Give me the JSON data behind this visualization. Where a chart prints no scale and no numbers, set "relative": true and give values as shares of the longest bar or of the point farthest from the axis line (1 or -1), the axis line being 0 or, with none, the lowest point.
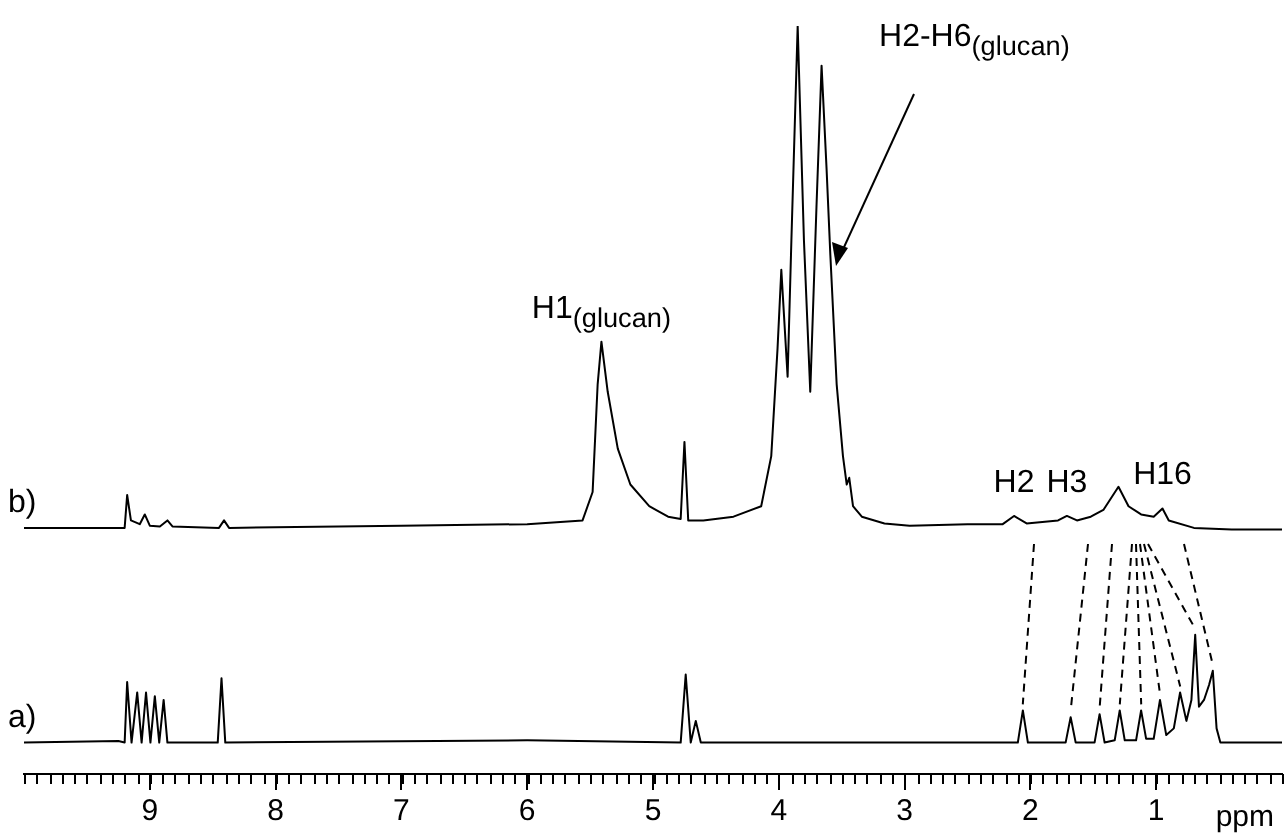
{
  "chart_data": {
    "type": "line",
    "relative": true,
    "xlabel": "ppm",
    "legend": false,
    "grid": false,
    "marker": "none",
    "line_style": "solid",
    "xlim": [
      10,
      0
    ],
    "xticks": [
      9,
      8,
      7,
      6,
      5,
      4,
      3,
      2,
      1
    ],
    "series": [
      {
        "name": "b)",
        "color": "#000000",
        "x": [
          10,
          9.24,
          9.2,
          9.18,
          9.15,
          9.08,
          9.04,
          9.0,
          8.92,
          8.86,
          8.82,
          8.45,
          8.41,
          8.37,
          7,
          6,
          5.56,
          5.48,
          5.44,
          5.41,
          5.36,
          5.28,
          5.18,
          5.03,
          4.88,
          4.78,
          4.75,
          4.72,
          4.6,
          4.36,
          4.14,
          4.06,
          4.01,
          3.98,
          3.93,
          3.9,
          3.85,
          3.8,
          3.75,
          3.7,
          3.66,
          3.62,
          3.59,
          3.54,
          3.49,
          3.46,
          3.44,
          3.41,
          3.34,
          3.16,
          2.96,
          2.5,
          2.22,
          2.13,
          2.03,
          1.78,
          1.71,
          1.63,
          1.52,
          1.42,
          1.3,
          1.22,
          1.12,
          1.02,
          0.95,
          0.9,
          0.7,
          0.4,
          0
        ],
        "values": [
          0.329,
          0.329,
          0.329,
          0.373,
          0.339,
          0.334,
          0.347,
          0.332,
          0.331,
          0.339,
          0.331,
          0.329,
          0.339,
          0.329,
          0.332,
          0.334,
          0.339,
          0.377,
          0.521,
          0.578,
          0.511,
          0.435,
          0.387,
          0.358,
          0.344,
          0.341,
          0.444,
          0.339,
          0.339,
          0.344,
          0.358,
          0.425,
          0.569,
          0.674,
          0.531,
          0.713,
          1,
          0.713,
          0.511,
          0.761,
          0.947,
          0.808,
          0.693,
          0.521,
          0.425,
          0.387,
          0.396,
          0.358,
          0.344,
          0.335,
          0.332,
          0.334,
          0.334,
          0.345,
          0.335,
          0.339,
          0.345,
          0.339,
          0.344,
          0.353,
          0.384,
          0.358,
          0.347,
          0.344,
          0.355,
          0.339,
          0.329,
          0.327,
          0.327
        ]
      },
      {
        "name": "a)",
        "color": "#000000",
        "x": [
          10,
          9.25,
          9.2,
          9.18,
          9.145,
          9.1,
          9.065,
          9.03,
          8.995,
          8.96,
          8.925,
          8.89,
          8.86,
          8.46,
          8.43,
          8.4,
          6,
          4.78,
          4.74,
          4.7,
          4.66,
          4.62,
          2.1,
          2.06,
          2.02,
          1.72,
          1.68,
          1.64,
          1.49,
          1.45,
          1.41,
          1.33,
          1.29,
          1.25,
          1.16,
          1.12,
          1.08,
          1.02,
          0.97,
          0.92,
          0.86,
          0.81,
          0.76,
          0.72,
          0.69,
          0.66,
          0.62,
          0.58,
          0.55,
          0.52,
          0.49,
          0
        ],
        "values": [
          0.042,
          0.044,
          0.042,
          0.123,
          0.042,
          0.109,
          0.042,
          0.109,
          0.042,
          0.104,
          0.042,
          0.099,
          0.042,
          0.042,
          0.128,
          0.042,
          0.045,
          0.042,
          0.133,
          0.042,
          0.071,
          0.042,
          0.042,
          0.085,
          0.042,
          0.042,
          0.076,
          0.042,
          0.042,
          0.08,
          0.042,
          0.045,
          0.085,
          0.045,
          0.045,
          0.085,
          0.047,
          0.047,
          0.099,
          0.052,
          0.061,
          0.109,
          0.071,
          0.099,
          0.186,
          0.09,
          0.099,
          0.119,
          0.138,
          0.061,
          0.042,
          0.042
        ]
      }
    ],
    "annotations": [
      {
        "text": "H1$_{(glucan)}$",
        "x": 5.41,
        "y": 0.578
      },
      {
        "text": "H2-H6$_{(glucan)}$",
        "x": 3.59,
        "y": 0.693
      },
      {
        "text": "H2",
        "x": 2.13,
        "y": 0.345
      },
      {
        "text": "H3",
        "x": 1.71,
        "y": 0.345
      },
      {
        "text": "H16",
        "x": 0.95,
        "y": 0.355
      }
    ]
  }
}
